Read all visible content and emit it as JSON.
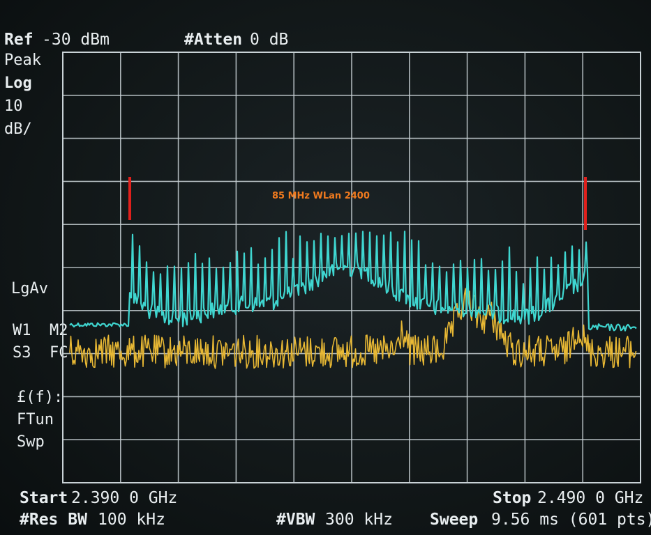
{
  "header": {
    "ref_label": "Ref",
    "ref_value": "-30 dBm",
    "atten_label": "#Atten",
    "atten_value": "0 dB"
  },
  "sidebar": {
    "detector": "Peak",
    "scale_type": "Log",
    "scale_value": "10",
    "scale_unit": "dB/",
    "avg_label": "LgAv",
    "trace_line1": "W1  M2",
    "trace_line2": "S3  FC",
    "func_line1": "£(f):",
    "func_line2": "FTun",
    "func_line3": "Swp"
  },
  "annotation": {
    "text": "85 MHz WLan 2400",
    "color": "#f07a1e",
    "marker_color": "#e0201c"
  },
  "footer": {
    "start_label": "Start",
    "start_value": "2.390 0 GHz",
    "stop_label": "Stop",
    "stop_value": "2.490 0 GHz",
    "rbw_label": "#Res BW",
    "rbw_value": "100 kHz",
    "vbw_label": "#VBW",
    "vbw_value": "300 kHz",
    "sweep_label": "Sweep",
    "sweep_value": "9.56 ms (601 pts)"
  },
  "colors": {
    "background": "#121819",
    "grid": "#c9d2d6",
    "trace_1": "#3fd6d0",
    "trace_2": "#e8b834",
    "text": "#e9eef0"
  }
}
